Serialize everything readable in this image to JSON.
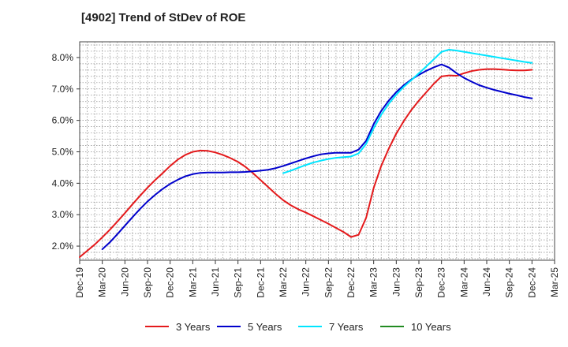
{
  "chart_data": {
    "type": "line",
    "title": "[4902]  Trend of StDev of ROE",
    "xlabel": "",
    "ylabel": "",
    "x_ticks": [
      "Dec-19",
      "Mar-20",
      "Jun-20",
      "Sep-20",
      "Dec-20",
      "Mar-21",
      "Jun-21",
      "Sep-21",
      "Dec-21",
      "Mar-22",
      "Jun-22",
      "Sep-22",
      "Dec-22",
      "Mar-23",
      "Jun-23",
      "Sep-23",
      "Dec-23",
      "Mar-24",
      "Jun-24",
      "Sep-24",
      "Dec-24",
      "Mar-25"
    ],
    "y_ticks": [
      "2.0%",
      "3.0%",
      "4.0%",
      "5.0%",
      "6.0%",
      "7.0%",
      "8.0%"
    ],
    "ylim": [
      1.55,
      8.5
    ],
    "grid": true,
    "legend_position": "bottom",
    "series": [
      {
        "name": "3 Years",
        "color": "#e41a1c",
        "points": [
          [
            "2019-12",
            1.65
          ],
          [
            "2020-01",
            1.85
          ],
          [
            "2020-02",
            2.05
          ],
          [
            "2020-03",
            2.28
          ],
          [
            "2020-04",
            2.52
          ],
          [
            "2020-05",
            2.78
          ],
          [
            "2020-06",
            3.05
          ],
          [
            "2020-07",
            3.33
          ],
          [
            "2020-08",
            3.6
          ],
          [
            "2020-09",
            3.86
          ],
          [
            "2020-10",
            4.1
          ],
          [
            "2020-11",
            4.32
          ],
          [
            "2020-12",
            4.55
          ],
          [
            "2021-01",
            4.75
          ],
          [
            "2021-02",
            4.9
          ],
          [
            "2021-03",
            5.0
          ],
          [
            "2021-04",
            5.04
          ],
          [
            "2021-05",
            5.03
          ],
          [
            "2021-06",
            4.98
          ],
          [
            "2021-07",
            4.9
          ],
          [
            "2021-08",
            4.8
          ],
          [
            "2021-09",
            4.68
          ],
          [
            "2021-10",
            4.52
          ],
          [
            "2021-11",
            4.32
          ],
          [
            "2021-12",
            4.1
          ],
          [
            "2022-01",
            3.88
          ],
          [
            "2022-02",
            3.66
          ],
          [
            "2022-03",
            3.46
          ],
          [
            "2022-04",
            3.3
          ],
          [
            "2022-05",
            3.17
          ],
          [
            "2022-06",
            3.07
          ],
          [
            "2022-07",
            2.95
          ],
          [
            "2022-08",
            2.83
          ],
          [
            "2022-09",
            2.71
          ],
          [
            "2022-10",
            2.58
          ],
          [
            "2022-11",
            2.45
          ],
          [
            "2022-12",
            2.29
          ],
          [
            "2023-01",
            2.36
          ],
          [
            "2023-02",
            2.9
          ],
          [
            "2023-03",
            3.85
          ],
          [
            "2023-04",
            4.55
          ],
          [
            "2023-05",
            5.1
          ],
          [
            "2023-06",
            5.58
          ],
          [
            "2023-07",
            5.98
          ],
          [
            "2023-08",
            6.33
          ],
          [
            "2023-09",
            6.63
          ],
          [
            "2023-10",
            6.9
          ],
          [
            "2023-11",
            7.17
          ],
          [
            "2023-12",
            7.4
          ],
          [
            "2024-01",
            7.43
          ],
          [
            "2024-02",
            7.42
          ],
          [
            "2024-03",
            7.5
          ],
          [
            "2024-04",
            7.57
          ],
          [
            "2024-05",
            7.61
          ],
          [
            "2024-06",
            7.63
          ],
          [
            "2024-07",
            7.63
          ],
          [
            "2024-08",
            7.62
          ],
          [
            "2024-09",
            7.6
          ],
          [
            "2024-10",
            7.59
          ],
          [
            "2024-11",
            7.59
          ],
          [
            "2024-12",
            7.61
          ]
        ]
      },
      {
        "name": "5 Years",
        "color": "#0000cc",
        "points": [
          [
            "2020-03",
            1.9
          ],
          [
            "2020-04",
            2.12
          ],
          [
            "2020-05",
            2.38
          ],
          [
            "2020-06",
            2.65
          ],
          [
            "2020-07",
            2.92
          ],
          [
            "2020-08",
            3.18
          ],
          [
            "2020-09",
            3.42
          ],
          [
            "2020-10",
            3.63
          ],
          [
            "2020-11",
            3.82
          ],
          [
            "2020-12",
            3.98
          ],
          [
            "2021-01",
            4.11
          ],
          [
            "2021-02",
            4.22
          ],
          [
            "2021-03",
            4.29
          ],
          [
            "2021-04",
            4.33
          ],
          [
            "2021-05",
            4.34
          ],
          [
            "2021-06",
            4.34
          ],
          [
            "2021-07",
            4.34
          ],
          [
            "2021-08",
            4.35
          ],
          [
            "2021-09",
            4.35
          ],
          [
            "2021-10",
            4.36
          ],
          [
            "2021-11",
            4.38
          ],
          [
            "2021-12",
            4.4
          ],
          [
            "2022-01",
            4.43
          ],
          [
            "2022-02",
            4.48
          ],
          [
            "2022-03",
            4.55
          ],
          [
            "2022-04",
            4.63
          ],
          [
            "2022-05",
            4.71
          ],
          [
            "2022-06",
            4.79
          ],
          [
            "2022-07",
            4.86
          ],
          [
            "2022-08",
            4.92
          ],
          [
            "2022-09",
            4.95
          ],
          [
            "2022-10",
            4.97
          ],
          [
            "2022-11",
            4.97
          ],
          [
            "2022-12",
            4.97
          ],
          [
            "2023-01",
            5.07
          ],
          [
            "2023-02",
            5.35
          ],
          [
            "2023-03",
            5.88
          ],
          [
            "2023-04",
            6.3
          ],
          [
            "2023-05",
            6.63
          ],
          [
            "2023-06",
            6.9
          ],
          [
            "2023-07",
            7.12
          ],
          [
            "2023-08",
            7.3
          ],
          [
            "2023-09",
            7.45
          ],
          [
            "2023-10",
            7.58
          ],
          [
            "2023-11",
            7.69
          ],
          [
            "2023-12",
            7.78
          ],
          [
            "2024-01",
            7.68
          ],
          [
            "2024-02",
            7.5
          ],
          [
            "2024-03",
            7.35
          ],
          [
            "2024-04",
            7.23
          ],
          [
            "2024-05",
            7.12
          ],
          [
            "2024-06",
            7.04
          ],
          [
            "2024-07",
            6.97
          ],
          [
            "2024-08",
            6.91
          ],
          [
            "2024-09",
            6.85
          ],
          [
            "2024-10",
            6.8
          ],
          [
            "2024-11",
            6.74
          ],
          [
            "2024-12",
            6.7
          ]
        ]
      },
      {
        "name": "7 Years",
        "color": "#00e5ff",
        "points": [
          [
            "2022-03",
            4.32
          ],
          [
            "2022-04",
            4.4
          ],
          [
            "2022-05",
            4.49
          ],
          [
            "2022-06",
            4.58
          ],
          [
            "2022-07",
            4.66
          ],
          [
            "2022-08",
            4.72
          ],
          [
            "2022-09",
            4.77
          ],
          [
            "2022-10",
            4.81
          ],
          [
            "2022-11",
            4.83
          ],
          [
            "2022-12",
            4.85
          ],
          [
            "2023-01",
            4.95
          ],
          [
            "2023-02",
            5.25
          ],
          [
            "2023-03",
            5.75
          ],
          [
            "2023-04",
            6.18
          ],
          [
            "2023-05",
            6.53
          ],
          [
            "2023-06",
            6.82
          ],
          [
            "2023-07",
            7.07
          ],
          [
            "2023-08",
            7.28
          ],
          [
            "2023-09",
            7.5
          ],
          [
            "2023-10",
            7.72
          ],
          [
            "2023-11",
            7.95
          ],
          [
            "2023-12",
            8.18
          ],
          [
            "2024-01",
            8.25
          ],
          [
            "2024-02",
            8.22
          ],
          [
            "2024-03",
            8.18
          ],
          [
            "2024-04",
            8.14
          ],
          [
            "2024-05",
            8.1
          ],
          [
            "2024-06",
            8.06
          ],
          [
            "2024-07",
            8.02
          ],
          [
            "2024-08",
            7.98
          ],
          [
            "2024-09",
            7.94
          ],
          [
            "2024-10",
            7.9
          ],
          [
            "2024-11",
            7.86
          ],
          [
            "2024-12",
            7.83
          ]
        ]
      },
      {
        "name": "10 Years",
        "color": "#228b22",
        "points": []
      }
    ]
  }
}
